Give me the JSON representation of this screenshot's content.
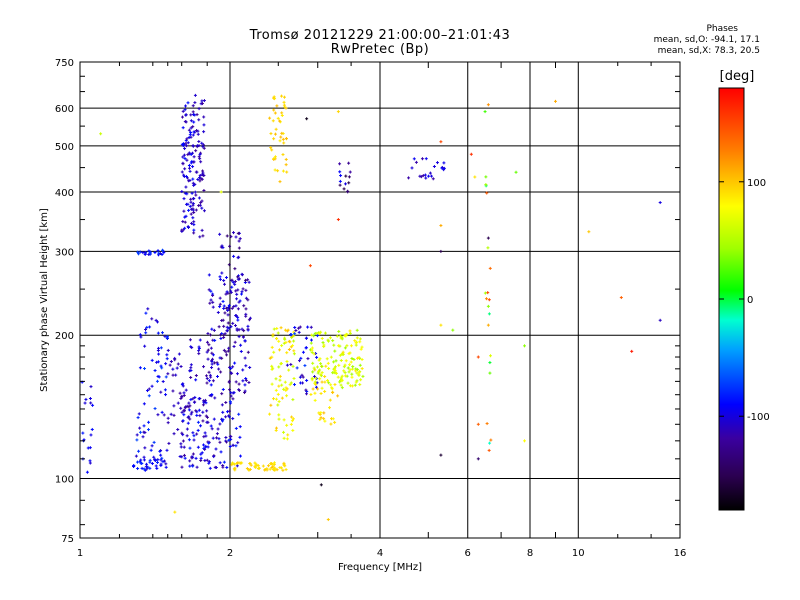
{
  "header": {
    "title_line1": "Tromsø 20121229 21:00:00–21:01:43",
    "title_line2": "RwPretec (Bp)"
  },
  "stats": {
    "heading": "Phases",
    "line_o": "mean, sd,O: -94.1, 17.1",
    "line_x": "mean, sd,X:  78.3, 20.5"
  },
  "colorbar": {
    "title": "[deg]",
    "ticks": [
      "100",
      "0",
      "-100"
    ],
    "tick_values": [
      100,
      0,
      -100
    ],
    "range": [
      -180,
      180
    ]
  },
  "chart_data": {
    "type": "scatter",
    "xlabel": "Frequency [MHz]",
    "ylabel": "Stationary phase Virtual Height [km]",
    "x_scale": "log",
    "y_scale": "log",
    "xlim": [
      1,
      16
    ],
    "ylim": [
      75,
      750
    ],
    "x_ticks": [
      1,
      2,
      4,
      6,
      8,
      10,
      16
    ],
    "x_tick_labels": [
      "1",
      "2",
      "4",
      "6",
      "8",
      "10",
      "16"
    ],
    "x_minor_ticks": [
      3,
      5,
      7,
      9
    ],
    "y_ticks": [
      75,
      100,
      200,
      300,
      400,
      500,
      600,
      750
    ],
    "y_tick_labels": [
      "75",
      "100",
      "200",
      "300",
      "400",
      "500",
      "600",
      "750"
    ],
    "grid": true,
    "clusters": [
      {
        "freq": [
          1.0,
          1.06
        ],
        "height": [
          98,
          170
        ],
        "phase": [
          -110,
          -80
        ],
        "count": 18
      },
      {
        "freq": [
          1.28,
          1.5
        ],
        "height": [
          104,
          112
        ],
        "phase": [
          -110,
          -75
        ],
        "count": 40
      },
      {
        "freq": [
          1.3,
          1.5
        ],
        "height": [
          112,
          230
        ],
        "phase": [
          -115,
          -70
        ],
        "count": 70
      },
      {
        "freq": [
          1.3,
          1.48
        ],
        "height": [
          295,
          302
        ],
        "phase": [
          -105,
          -70
        ],
        "count": 22
      },
      {
        "freq": [
          1.5,
          1.62
        ],
        "height": [
          110,
          190
        ],
        "phase": [
          -120,
          -100
        ],
        "count": 35
      },
      {
        "freq": [
          1.6,
          1.7
        ],
        "height": [
          330,
          620
        ],
        "phase": [
          -120,
          -85
        ],
        "count": 95
      },
      {
        "freq": [
          1.68,
          1.78
        ],
        "height": [
          320,
          640
        ],
        "phase": [
          -125,
          -100
        ],
        "count": 70
      },
      {
        "freq": [
          1.6,
          1.85
        ],
        "height": [
          108,
          200
        ],
        "phase": [
          -125,
          -90
        ],
        "count": 60
      },
      {
        "freq": [
          1.6,
          2.1
        ],
        "height": [
          105,
          150
        ],
        "phase": [
          -125,
          -80
        ],
        "count": 120
      },
      {
        "freq": [
          1.8,
          2.2
        ],
        "height": [
          150,
          270
        ],
        "phase": [
          -130,
          -85
        ],
        "count": 150
      },
      {
        "freq": [
          1.9,
          2.15
        ],
        "height": [
          200,
          330
        ],
        "phase": [
          -140,
          -95
        ],
        "count": 45
      },
      {
        "freq": [
          2.0,
          2.6
        ],
        "height": [
          104,
          108
        ],
        "phase": [
          85,
          100
        ],
        "count": 55
      },
      {
        "freq": [
          2.4,
          2.6
        ],
        "height": [
          420,
          640
        ],
        "phase": [
          85,
          105
        ],
        "count": 45
      },
      {
        "freq": [
          2.4,
          2.7
        ],
        "height": [
          120,
          210
        ],
        "phase": [
          55,
          105
        ],
        "count": 85
      },
      {
        "freq": [
          2.6,
          3.0
        ],
        "height": [
          150,
          210
        ],
        "phase": [
          -120,
          -70
        ],
        "count": 40
      },
      {
        "freq": [
          2.9,
          3.3
        ],
        "height": [
          130,
          175
        ],
        "phase": [
          75,
          105
        ],
        "count": 40
      },
      {
        "freq": [
          2.9,
          3.7
        ],
        "height": [
          155,
          205
        ],
        "phase": [
          40,
          80
        ],
        "count": 110
      },
      {
        "freq": [
          3.3,
          3.7
        ],
        "height": [
          155,
          210
        ],
        "phase": [
          60,
          90
        ],
        "count": 35
      },
      {
        "freq": [
          3.3,
          3.5
        ],
        "height": [
          400,
          460
        ],
        "phase": [
          -160,
          -90
        ],
        "count": 14
      },
      {
        "freq": [
          4.5,
          5.4
        ],
        "height": [
          420,
          470
        ],
        "phase": [
          -120,
          -90
        ],
        "count": 22
      },
      {
        "freq": [
          6.5,
          6.7
        ],
        "height": [
          110,
          480
        ],
        "phase": [
          -30,
          160
        ],
        "count": 18
      }
    ],
    "sparse_points": [
      {
        "freq": 1.1,
        "height": 530,
        "phase": 60
      },
      {
        "freq": 1.55,
        "height": 85,
        "phase": 90
      },
      {
        "freq": 1.92,
        "height": 400,
        "phase": 70
      },
      {
        "freq": 2.85,
        "height": 570,
        "phase": -170
      },
      {
        "freq": 2.9,
        "height": 280,
        "phase": 150
      },
      {
        "freq": 3.05,
        "height": 97,
        "phase": -170
      },
      {
        "freq": 3.15,
        "height": 82,
        "phase": 100
      },
      {
        "freq": 3.3,
        "height": 590,
        "phase": 95
      },
      {
        "freq": 3.3,
        "height": 350,
        "phase": 160
      },
      {
        "freq": 5.3,
        "height": 510,
        "phase": 150
      },
      {
        "freq": 5.3,
        "height": 340,
        "phase": 110
      },
      {
        "freq": 5.3,
        "height": 300,
        "phase": -150
      },
      {
        "freq": 5.3,
        "height": 112,
        "phase": -160
      },
      {
        "freq": 5.3,
        "height": 210,
        "phase": 90
      },
      {
        "freq": 5.6,
        "height": 205,
        "phase": 40
      },
      {
        "freq": 6.1,
        "height": 480,
        "phase": 160
      },
      {
        "freq": 6.2,
        "height": 430,
        "phase": 90
      },
      {
        "freq": 6.3,
        "height": 180,
        "phase": 150
      },
      {
        "freq": 6.3,
        "height": 130,
        "phase": 140
      },
      {
        "freq": 6.3,
        "height": 110,
        "phase": -140
      },
      {
        "freq": 6.5,
        "height": 590,
        "phase": 20
      },
      {
        "freq": 6.6,
        "height": 610,
        "phase": 120
      },
      {
        "freq": 6.6,
        "height": 320,
        "phase": -150
      },
      {
        "freq": 6.6,
        "height": 230,
        "phase": 40
      },
      {
        "freq": 6.6,
        "height": 210,
        "phase": 110
      },
      {
        "freq": 7.5,
        "height": 440,
        "phase": 30
      },
      {
        "freq": 7.8,
        "height": 190,
        "phase": 40
      },
      {
        "freq": 7.8,
        "height": 120,
        "phase": 80
      },
      {
        "freq": 9.0,
        "height": 620,
        "phase": 110
      },
      {
        "freq": 10.5,
        "height": 330,
        "phase": 100
      },
      {
        "freq": 12.2,
        "height": 240,
        "phase": 140
      },
      {
        "freq": 12.8,
        "height": 185,
        "phase": 170
      },
      {
        "freq": 14.6,
        "height": 380,
        "phase": -100
      },
      {
        "freq": 14.6,
        "height": 215,
        "phase": -110
      }
    ]
  }
}
